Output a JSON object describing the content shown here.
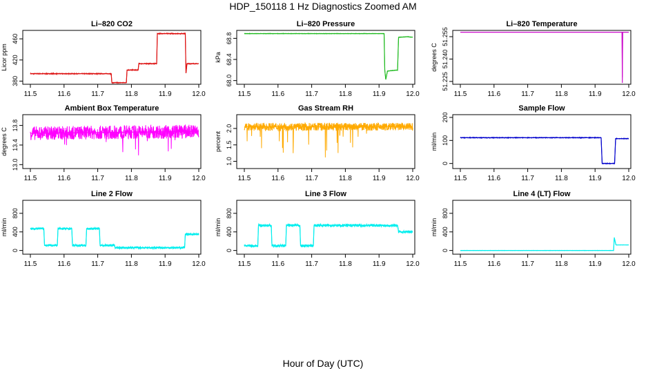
{
  "figure": {
    "title": "HDP_150118  1 Hz Diagnostics Zoomed AM",
    "xlabel": "Hour of Day (UTC)"
  },
  "chart_data": [
    {
      "type": "line",
      "title": "Li–820 CO2",
      "ylabel": "Licor ppm",
      "color": "#dd1111",
      "xlim": [
        11.5,
        12.0
      ],
      "ylim": [
        374,
        476
      ],
      "xticks": [
        "11.5",
        "11.6",
        "11.7",
        "11.8",
        "11.9",
        "12.0"
      ],
      "yticks": [
        {
          "v": 380,
          "label": "380"
        },
        {
          "v": 420,
          "label": "420"
        },
        {
          "v": 460,
          "label": "460"
        }
      ],
      "segments": [
        [
          11.5,
          394
        ],
        [
          11.74,
          394
        ],
        [
          11.742,
          377
        ],
        [
          11.785,
          377
        ],
        [
          11.787,
          401
        ],
        [
          11.82,
          401
        ],
        [
          11.822,
          413
        ],
        [
          11.875,
          413
        ],
        [
          11.877,
          470
        ],
        [
          11.96,
          470
        ],
        [
          11.962,
          395
        ],
        [
          11.965,
          413
        ],
        [
          12.0,
          413
        ]
      ],
      "noise": 0.8
    },
    {
      "type": "line",
      "title": "Li–820 Pressure",
      "ylabel": "kPa",
      "color": "#22bb22",
      "xlim": [
        11.5,
        12.0
      ],
      "ylim": [
        67.93,
        68.95
      ],
      "xticks": [
        "11.5",
        "11.6",
        "11.7",
        "11.8",
        "11.9",
        "12.0"
      ],
      "yticks": [
        {
          "v": 68.0,
          "label": "68.0"
        },
        {
          "v": 68.4,
          "label": "68.4"
        },
        {
          "v": 68.8,
          "label": "68.8"
        }
      ],
      "segments": [
        [
          11.5,
          68.89
        ],
        [
          11.915,
          68.89
        ],
        [
          11.917,
          68.2
        ],
        [
          11.92,
          68.02
        ],
        [
          11.925,
          68.18
        ],
        [
          11.955,
          68.2
        ],
        [
          11.958,
          68.82
        ],
        [
          11.985,
          68.83
        ],
        [
          12.0,
          68.82
        ]
      ],
      "noise": 0.004
    },
    {
      "type": "line",
      "title": "Li–820 Temperature",
      "ylabel": "degrees C",
      "color": "#cc11cc",
      "xlim": [
        11.5,
        12.0
      ],
      "ylim": [
        51.2231,
        51.2592
      ],
      "xticks": [
        "11.5",
        "11.6",
        "11.7",
        "11.8",
        "11.9",
        "12.0"
      ],
      "yticks": [
        {
          "v": 51.225,
          "label": "51.225"
        },
        {
          "v": 51.24,
          "label": "51.240"
        },
        {
          "v": 51.255,
          "label": "51.255"
        }
      ],
      "segments": [
        [
          11.5,
          51.258
        ],
        [
          11.98,
          51.258
        ],
        [
          11.981,
          51.224
        ],
        [
          11.982,
          51.258
        ],
        [
          12.0,
          51.258
        ]
      ],
      "noise": 0
    },
    {
      "type": "line",
      "title": "Ambient Box Temperature",
      "ylabel": "degrees C",
      "color": "#ff00ff",
      "xlim": [
        11.5,
        12.0
      ],
      "ylim": [
        12.92,
        14.02
      ],
      "xticks": [
        "11.5",
        "11.6",
        "11.7",
        "11.8",
        "11.9",
        "12.0"
      ],
      "yticks": [
        {
          "v": 13.0,
          "label": "13.0"
        },
        {
          "v": 13.4,
          "label": "13.4"
        },
        {
          "v": 13.8,
          "label": "13.8"
        }
      ],
      "segments": [
        [
          11.5,
          13.64
        ],
        [
          12.0,
          13.68
        ]
      ],
      "noise": 0.14
    },
    {
      "type": "line",
      "title": "Gas Stream RH",
      "ylabel": "percent",
      "color": "#ffaa00",
      "xlim": [
        11.5,
        12.0
      ],
      "ylim": [
        0.78,
        2.42
      ],
      "xticks": [
        "11.5",
        "11.6",
        "11.7",
        "11.8",
        "11.9",
        "12.0"
      ],
      "yticks": [
        {
          "v": 1.0,
          "label": "1.0"
        },
        {
          "v": 1.5,
          "label": "1.5"
        },
        {
          "v": 2.0,
          "label": "2.0"
        }
      ],
      "segments": [
        [
          11.5,
          2.05
        ],
        [
          12.0,
          2.05
        ]
      ],
      "noise": 0.12
    },
    {
      "type": "line",
      "title": "Sample Flow",
      "ylabel": "ml/min",
      "color": "#0000cc",
      "xlim": [
        11.5,
        12.0
      ],
      "ylim": [
        -22,
        212
      ],
      "xticks": [
        "11.5",
        "11.6",
        "11.7",
        "11.8",
        "11.9",
        "12.0"
      ],
      "yticks": [
        {
          "v": 0,
          "label": "0"
        },
        {
          "v": 100,
          "label": "100"
        },
        {
          "v": 200,
          "label": "200"
        }
      ],
      "segments": [
        [
          11.5,
          112
        ],
        [
          11.918,
          112
        ],
        [
          11.921,
          0
        ],
        [
          11.958,
          0
        ],
        [
          11.961,
          108
        ],
        [
          12.0,
          108
        ]
      ],
      "noise": 1.5
    },
    {
      "type": "line",
      "title": "Line 2 Flow",
      "ylabel": "ml/min",
      "color": "#00eeee",
      "xlim": [
        11.5,
        12.0
      ],
      "ylim": [
        -80,
        1080
      ],
      "xticks": [
        "11.5",
        "11.6",
        "11.7",
        "11.8",
        "11.9",
        "12.0"
      ],
      "yticks": [
        {
          "v": 0,
          "label": "0"
        },
        {
          "v": 400,
          "label": "400"
        },
        {
          "v": 800,
          "label": "800"
        }
      ],
      "segments": [
        [
          11.5,
          470
        ],
        [
          11.54,
          470
        ],
        [
          11.542,
          110
        ],
        [
          11.58,
          110
        ],
        [
          11.582,
          470
        ],
        [
          11.623,
          470
        ],
        [
          11.625,
          110
        ],
        [
          11.665,
          110
        ],
        [
          11.667,
          470
        ],
        [
          11.705,
          470
        ],
        [
          11.707,
          110
        ],
        [
          11.75,
          110
        ],
        [
          11.752,
          60
        ],
        [
          11.958,
          60
        ],
        [
          11.96,
          350
        ],
        [
          12.0,
          350
        ]
      ],
      "noise": 25
    },
    {
      "type": "line",
      "title": "Line 3 Flow",
      "ylabel": "ml/min",
      "color": "#00eeee",
      "xlim": [
        11.5,
        12.0
      ],
      "ylim": [
        -80,
        1080
      ],
      "xticks": [
        "11.5",
        "11.6",
        "11.7",
        "11.8",
        "11.9",
        "12.0"
      ],
      "yticks": [
        {
          "v": 0,
          "label": "0"
        },
        {
          "v": 400,
          "label": "400"
        },
        {
          "v": 800,
          "label": "800"
        }
      ],
      "segments": [
        [
          11.5,
          100
        ],
        [
          11.54,
          100
        ],
        [
          11.542,
          540
        ],
        [
          11.58,
          540
        ],
        [
          11.582,
          100
        ],
        [
          11.623,
          100
        ],
        [
          11.625,
          540
        ],
        [
          11.665,
          540
        ],
        [
          11.667,
          100
        ],
        [
          11.705,
          100
        ],
        [
          11.707,
          540
        ],
        [
          11.955,
          540
        ],
        [
          11.958,
          400
        ],
        [
          12.0,
          400
        ]
      ],
      "noise": 30
    },
    {
      "type": "line",
      "title": "Line 4 (LT) Flow",
      "ylabel": "ml/min",
      "color": "#00eeee",
      "xlim": [
        11.5,
        12.0
      ],
      "ylim": [
        -80,
        1080
      ],
      "xticks": [
        "11.5",
        "11.6",
        "11.7",
        "11.8",
        "11.9",
        "12.0"
      ],
      "yticks": [
        {
          "v": 0,
          "label": "0"
        },
        {
          "v": 400,
          "label": "400"
        },
        {
          "v": 800,
          "label": "800"
        }
      ],
      "segments": [
        [
          11.5,
          0
        ],
        [
          11.955,
          0
        ],
        [
          11.957,
          280
        ],
        [
          11.962,
          120
        ],
        [
          12.0,
          120
        ]
      ],
      "noise": 3
    }
  ]
}
